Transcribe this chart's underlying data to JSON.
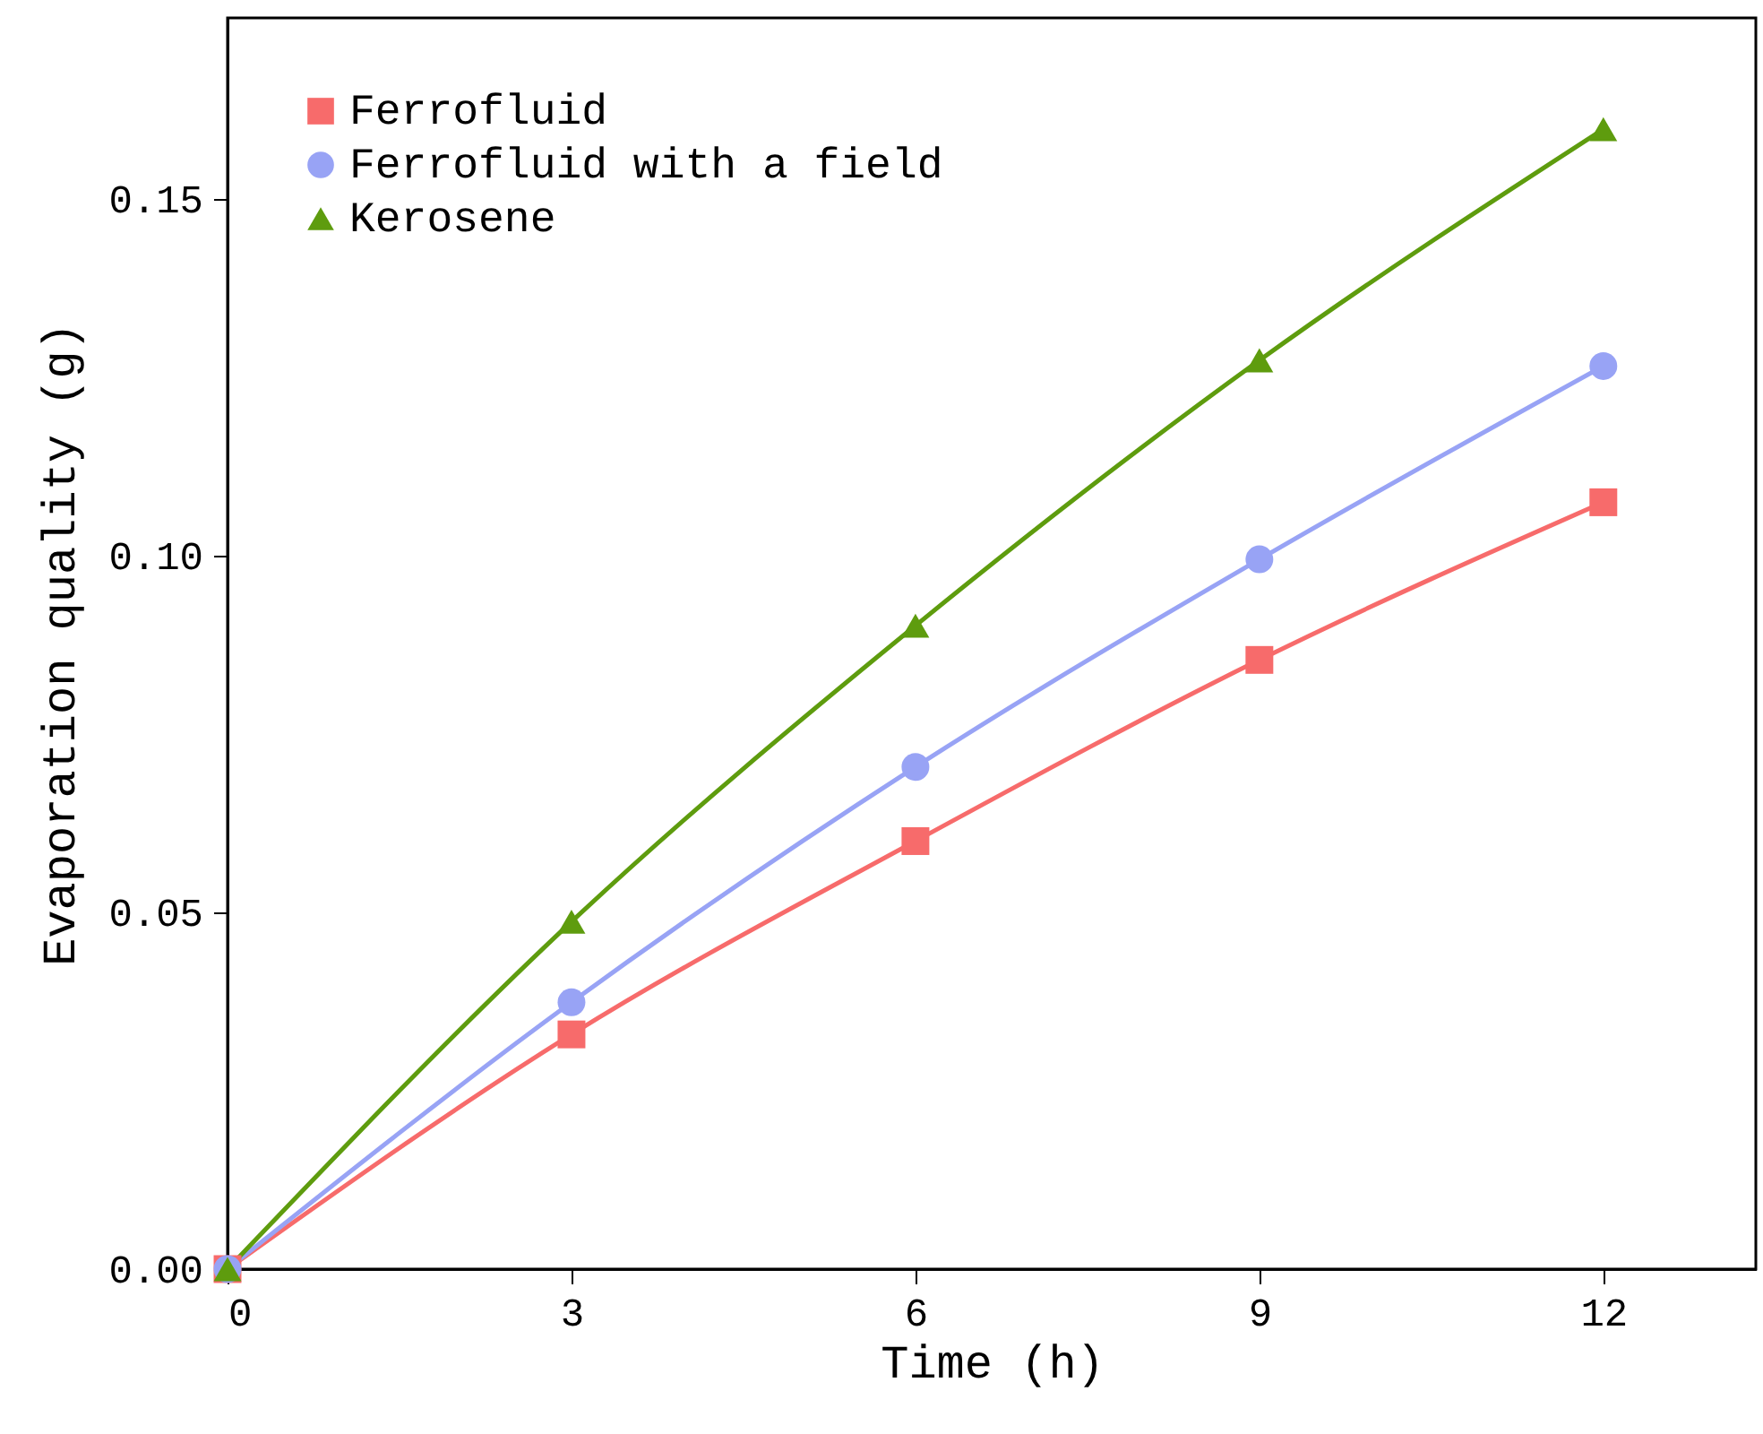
{
  "chart_data": {
    "type": "line",
    "xlabel": "Time (h)",
    "ylabel": "Evaporation quality (g)",
    "x": [
      0,
      3,
      6,
      9,
      12
    ],
    "series": [
      {
        "name": "Ferrofluid",
        "color": "#f76b6b",
        "marker": "square",
        "values": [
          0,
          0.0329,
          0.06,
          0.0854,
          0.1075
        ]
      },
      {
        "name": "Ferrofluid with a field",
        "color": "#98a3f5",
        "marker": "circle",
        "values": [
          0,
          0.0374,
          0.0704,
          0.0995,
          0.1266
        ]
      },
      {
        "name": "Kerosene",
        "color": "#5e9c0e",
        "marker": "triangle",
        "values": [
          0,
          0.0487,
          0.0902,
          0.1274,
          0.1598
        ]
      }
    ],
    "xlim": [
      0,
      13.33
    ],
    "xticks": [
      0,
      3,
      6,
      9,
      12
    ],
    "ylim": [
      0,
      0.1754
    ],
    "yticks": [
      {
        "value": 0,
        "label": "0.00"
      },
      0.05,
      {
        "value": 0.1,
        "label": "0.10"
      },
      0.15
    ],
    "grid": false,
    "legend": "top left",
    "line_style": "solid"
  }
}
